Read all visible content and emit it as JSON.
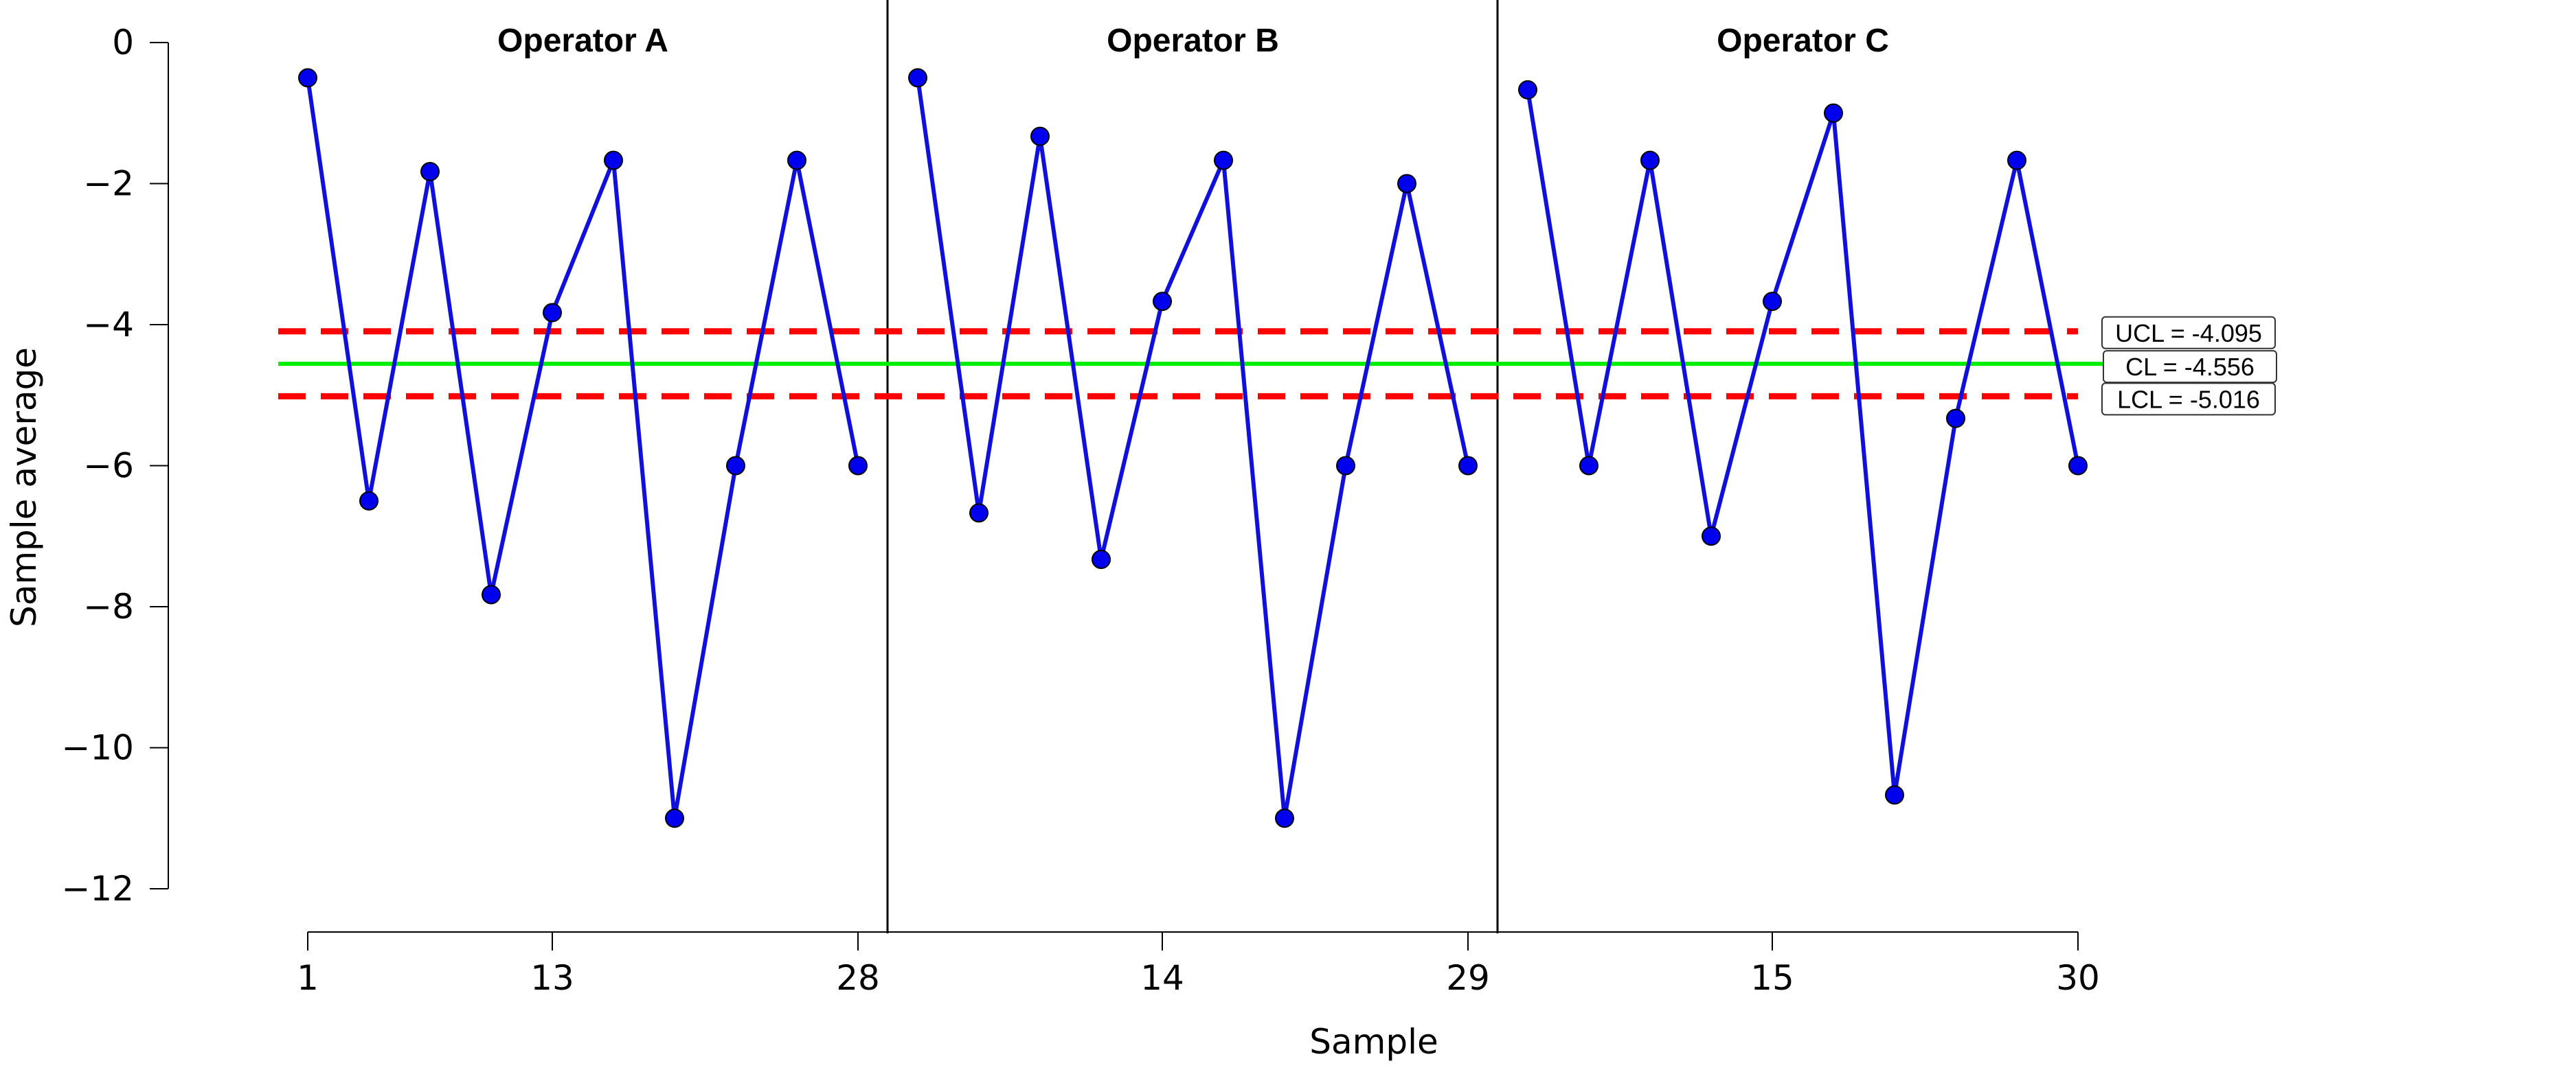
{
  "chart_data": {
    "type": "line",
    "xlabel": "Sample",
    "ylabel": "Sample average",
    "ylim": [
      -12,
      0
    ],
    "yticks": [
      0,
      -2,
      -4,
      -6,
      -8,
      -10,
      -12
    ],
    "ytick_labels": [
      "0",
      "−2",
      "−4",
      "−6",
      "−8",
      "−10",
      "−12"
    ],
    "colors": {
      "series_line": "#1010dd",
      "marker_fill": "#0000ee",
      "marker_stroke": "#000000",
      "limit_line": "#ff0000",
      "center_line": "#00ee00",
      "panel_divider": "#000000"
    },
    "panels": [
      {
        "title": "Operator A",
        "values": [
          -0.5,
          -6.5,
          -1.83,
          -7.83,
          -3.83,
          -1.67,
          -11.0,
          -6.0,
          -1.67,
          -6.0
        ],
        "xtick_labels": [
          "1",
          "13",
          "28"
        ],
        "xtick_indices": [
          0,
          4,
          9
        ]
      },
      {
        "title": "Operator B",
        "values": [
          -0.5,
          -6.67,
          -1.33,
          -7.33,
          -3.67,
          -1.67,
          -11.0,
          -6.0,
          -2.0,
          -6.0
        ],
        "xtick_labels": [
          "14",
          "29"
        ],
        "xtick_indices": [
          4,
          9
        ]
      },
      {
        "title": "Operator C",
        "values": [
          -0.67,
          -6.0,
          -1.67,
          -7.0,
          -3.67,
          -1.0,
          -10.67,
          -5.33,
          -1.67,
          -6.0
        ],
        "xtick_labels": [
          "15",
          "30"
        ],
        "xtick_indices": [
          4,
          9
        ]
      }
    ],
    "limits": {
      "ucl": -4.095,
      "cl": -4.556,
      "lcl": -5.016,
      "ucl_label": "UCL = -4.095",
      "cl_label": "CL = -4.556",
      "lcl_label": "LCL = -5.016"
    }
  }
}
